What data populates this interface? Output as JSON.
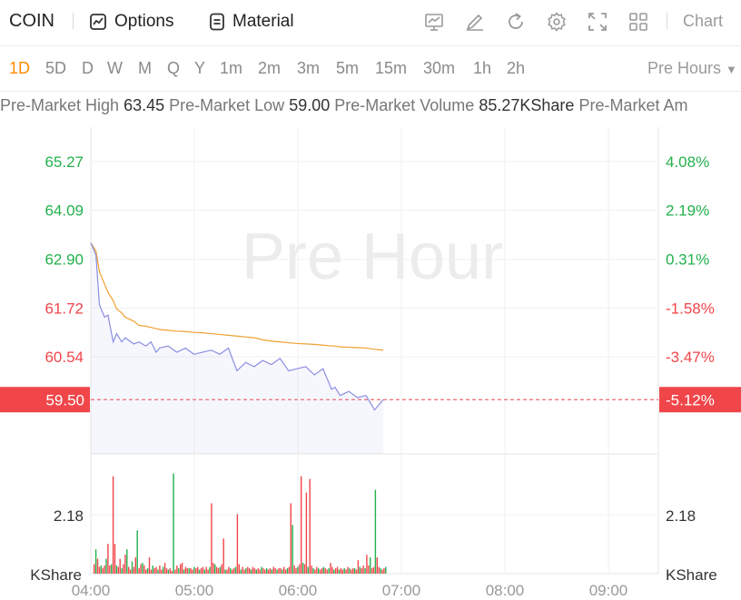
{
  "header": {
    "ticker": "COIN",
    "options_label": "Options",
    "material_label": "Material",
    "chart_dropdown": "Chart"
  },
  "periods": [
    {
      "label": "1D",
      "active": true
    },
    {
      "label": "5D"
    },
    {
      "label": "D"
    },
    {
      "label": "W"
    },
    {
      "label": "M"
    },
    {
      "label": "Q"
    },
    {
      "label": "Y"
    },
    {
      "label": "1m"
    },
    {
      "label": "2m"
    },
    {
      "label": "3m"
    },
    {
      "label": "5m"
    },
    {
      "label": "15m"
    },
    {
      "label": "30m"
    },
    {
      "label": "1h"
    },
    {
      "label": "2h"
    }
  ],
  "session_dropdown": "Pre Hours",
  "info": {
    "high_label": "Pre-Market High",
    "high_value": "63.45",
    "low_label": "Pre-Market Low",
    "low_value": "59.00",
    "volume_label": "Pre-Market Volume",
    "volume_value": "85.27KShare",
    "amount_label": "Pre-Market Am"
  },
  "colors": {
    "up": "#23b14d",
    "down": "#f0464a",
    "price_line": "#8a8fe0",
    "avg_line": "#f0a030",
    "active": "#ff8a00"
  },
  "chart_data": {
    "type": "line",
    "watermark": "Pre Hour",
    "price_axis": [
      "65.27",
      "64.09",
      "62.90",
      "61.72",
      "60.54"
    ],
    "pct_axis": [
      "4.08%",
      "2.19%",
      "0.31%",
      "-1.58%",
      "-3.47%"
    ],
    "current_price": "59.50",
    "current_pct": "-5.12%",
    "x_ticks": [
      "04:00",
      "05:00",
      "06:00",
      "07:00",
      "08:00",
      "09:00"
    ],
    "volume_axis_value": "2.18",
    "volume_unit": "KShare",
    "price_minutes": [
      0,
      3,
      5,
      8,
      10,
      13,
      15,
      18,
      20,
      25,
      28,
      32,
      35,
      38,
      40,
      45,
      50,
      55,
      60,
      65,
      70,
      75,
      80,
      85,
      90,
      95,
      100,
      105,
      110,
      115,
      120,
      125,
      130,
      135,
      140,
      142,
      145,
      150,
      155,
      160,
      165,
      170
    ],
    "price": [
      63.3,
      63.0,
      61.8,
      61.5,
      61.55,
      60.9,
      61.1,
      60.9,
      61.0,
      60.85,
      60.9,
      60.8,
      60.9,
      60.65,
      60.75,
      60.8,
      60.65,
      60.75,
      60.6,
      60.65,
      60.7,
      60.6,
      60.75,
      60.2,
      60.4,
      60.3,
      60.45,
      60.35,
      60.5,
      60.2,
      60.25,
      60.3,
      60.1,
      60.25,
      59.75,
      59.8,
      59.6,
      59.7,
      59.55,
      59.6,
      59.25,
      59.5
    ],
    "avg": [
      63.3,
      63.1,
      62.6,
      62.3,
      62.1,
      61.9,
      61.7,
      61.6,
      61.5,
      61.4,
      61.3,
      61.28,
      61.25,
      61.22,
      61.2,
      61.18,
      61.16,
      61.15,
      61.13,
      61.12,
      61.1,
      61.08,
      61.06,
      61.04,
      61.02,
      61.0,
      60.95,
      60.92,
      60.9,
      60.88,
      60.86,
      60.85,
      60.84,
      60.82,
      60.8,
      60.8,
      60.78,
      60.77,
      60.76,
      60.75,
      60.72,
      60.7
    ],
    "volume": [
      0.35,
      0.9,
      0.55,
      0.25,
      0.3,
      0.2,
      0.3,
      0.55,
      1.1,
      0.3,
      0.35,
      3.6,
      1.1,
      0.3,
      0.25,
      0.55,
      0.2,
      0.35,
      0.7,
      0.9,
      0.25,
      0.15,
      0.45,
      0.25,
      0.6,
      1.6,
      0.2,
      0.35,
      0.4,
      0.3,
      0.15,
      0.2,
      0.6,
      0.15,
      0.3,
      0.2,
      0.25,
      0.15,
      0.3,
      0.15,
      0.25,
      0.4,
      0.2,
      0.15,
      0.2,
      0.1,
      3.7,
      0.15,
      0.3,
      0.2,
      0.35,
      0.4,
      0.15,
      0.25,
      0.2,
      0.2,
      0.2,
      0.15,
      0.25,
      0.2,
      0.25,
      0.15,
      0.2,
      0.25,
      0.15,
      0.25,
      0.15,
      0.25,
      2.6,
      0.4,
      0.35,
      0.25,
      0.2,
      0.25,
      0.35,
      1.3,
      0.15,
      0.15,
      0.25,
      0.2,
      0.15,
      0.2,
      0.25,
      2.2,
      0.35,
      0.15,
      0.25,
      0.15,
      0.2,
      0.25,
      0.2,
      0.15,
      0.25,
      0.2,
      0.15,
      0.2,
      0.15,
      0.25,
      0.2,
      0.15,
      0.2,
      0.15,
      0.2,
      0.15,
      0.25,
      0.2,
      0.15,
      0.2,
      0.2,
      0.15,
      0.25,
      0.15,
      0.2,
      0.25,
      2.6,
      1.8,
      0.3,
      0.2,
      0.25,
      0.35,
      3.6,
      0.4,
      0.35,
      3.0,
      0.25,
      3.5,
      0.3,
      0.2,
      0.15,
      0.25,
      0.2,
      0.15,
      0.2,
      0.25,
      0.2,
      0.15,
      0.2,
      0.4,
      0.25,
      0.15,
      0.2,
      0.25,
      0.15,
      0.2,
      0.15,
      0.2,
      0.15,
      0.25,
      0.2,
      0.15,
      0.2,
      0.2,
      0.15,
      0.5,
      0.25,
      0.2,
      0.3,
      0.2,
      0.7,
      0.3,
      0.6,
      0.2,
      0.25,
      3.1,
      0.6,
      0.25,
      0.2,
      0.15,
      0.2,
      0.25
    ]
  }
}
